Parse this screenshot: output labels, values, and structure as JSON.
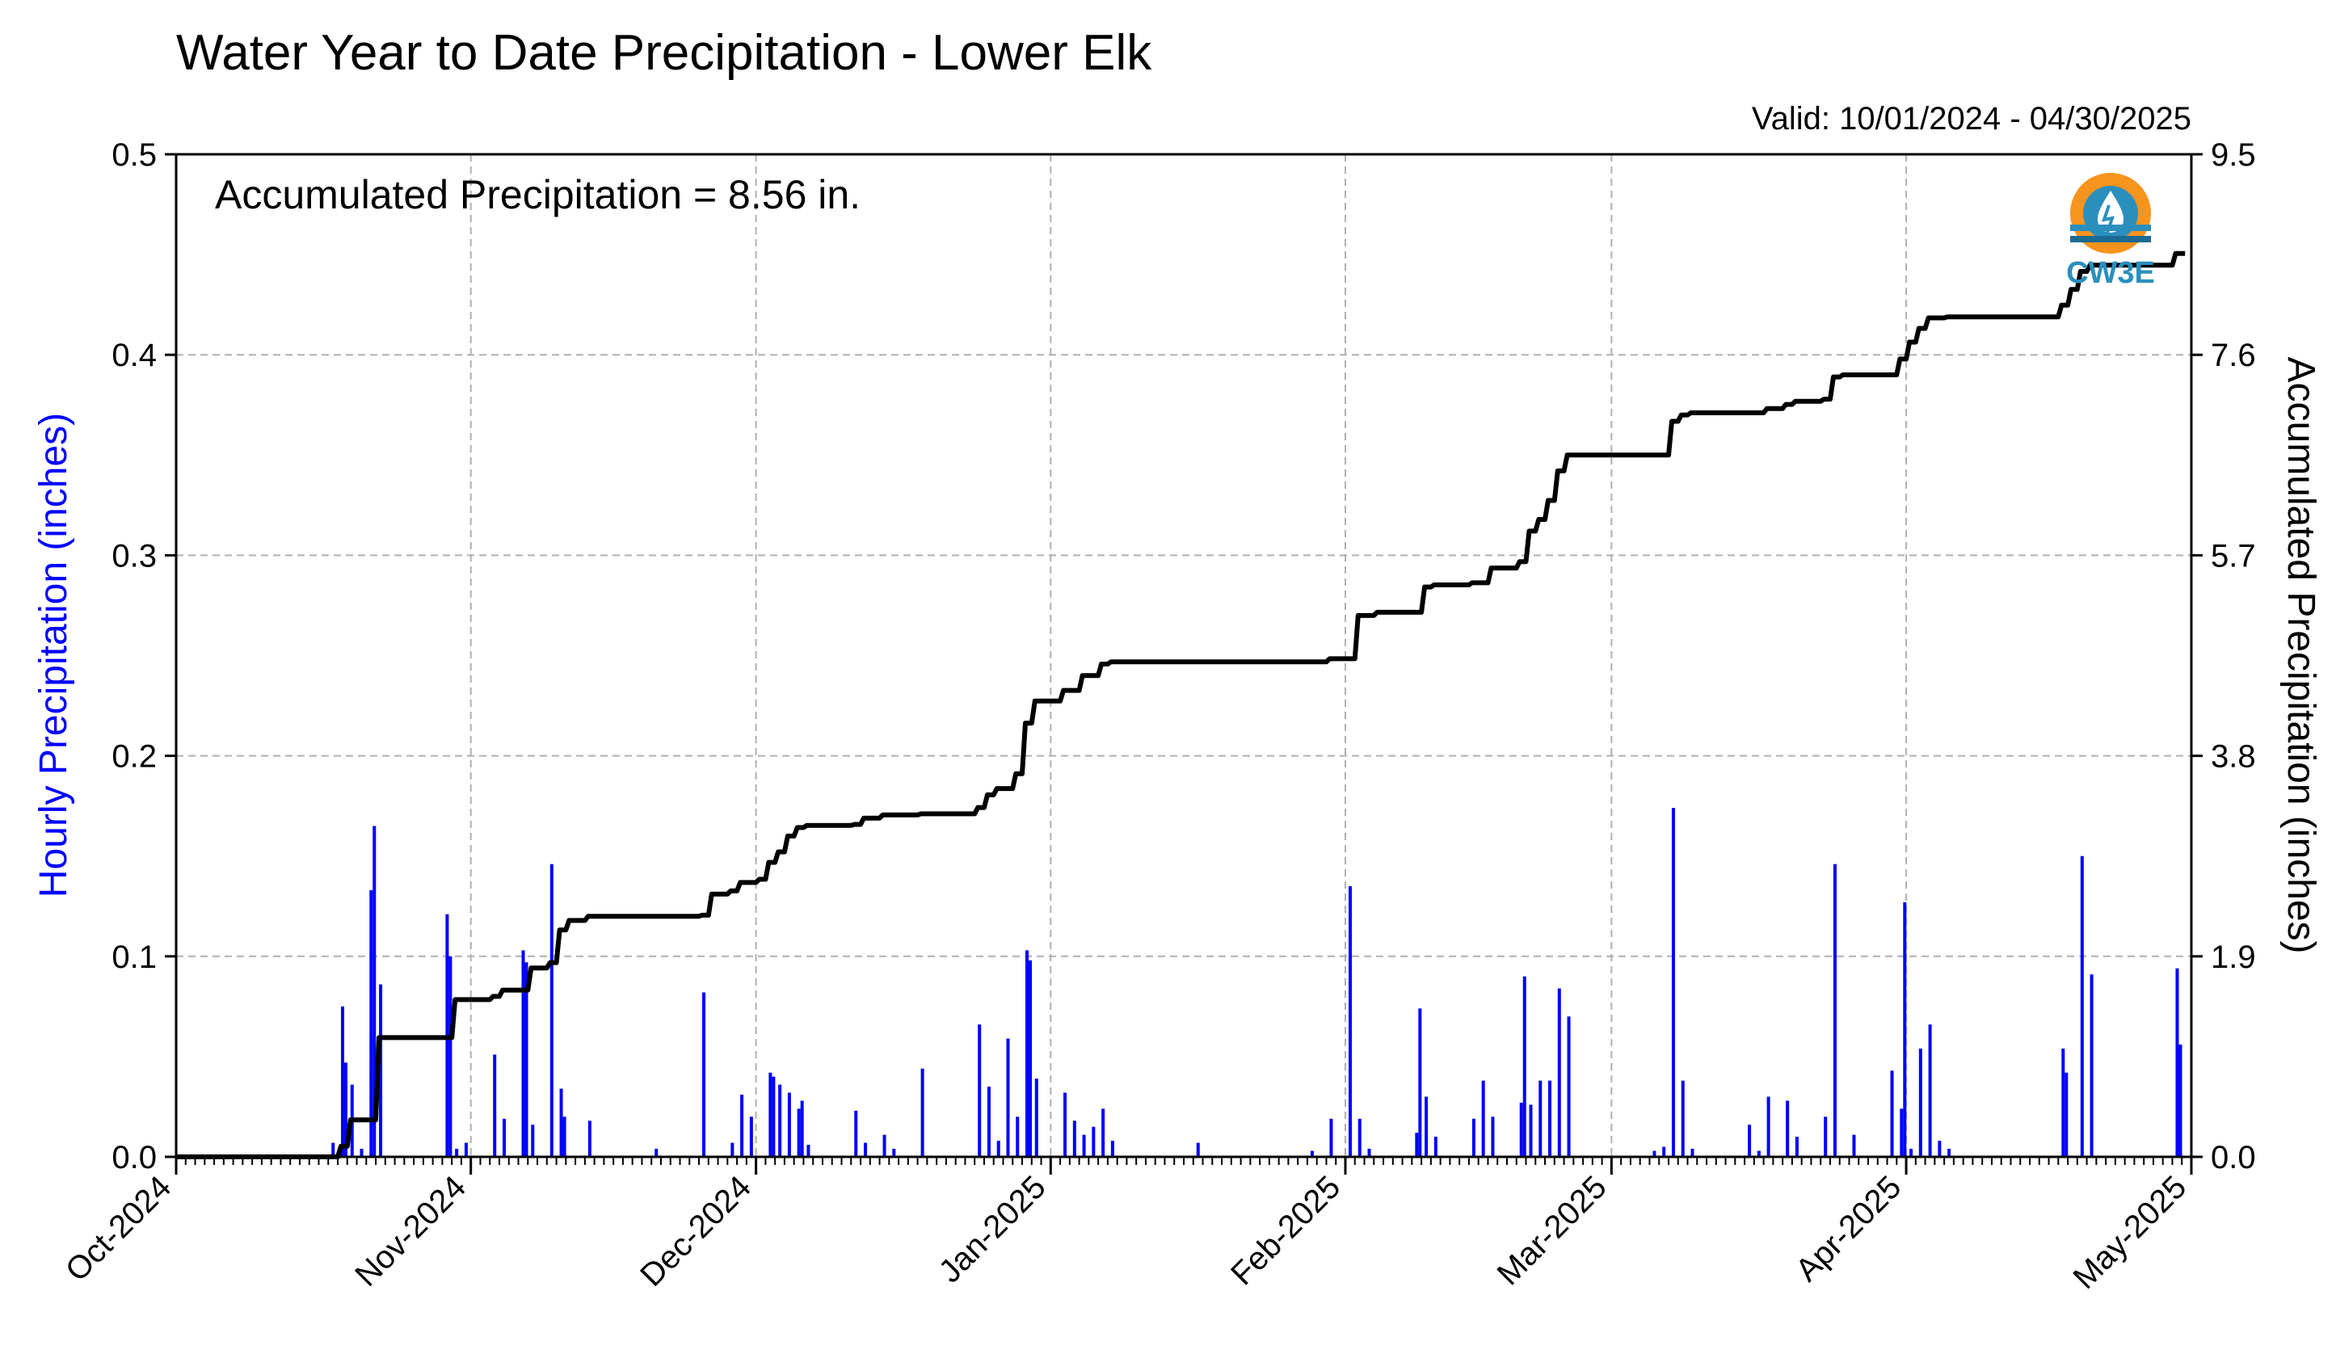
{
  "title": "Water Year to Date Precipitation - Lower Elk",
  "valid_label": "Valid: 10/01/2024 - 04/30/2025",
  "annotation": "Accumulated Precipitation = 8.56 in.",
  "logo": {
    "text": "CW3E",
    "icon": "water-drop-logo-icon",
    "colors": {
      "orange": "#F7941D",
      "blue": "#2A8FBD",
      "dark": "#1B6A93"
    }
  },
  "colors": {
    "hourly": "#0000FF",
    "accumulated": "#000000",
    "grid": "#B0B0B0"
  },
  "chart_data": {
    "type": "bar+line",
    "xlabel": "",
    "ylabel_left": "Hourly Precipitation (inches)",
    "ylabel_right": "Accumulated Precipitation (inches)",
    "x_range": [
      "2024-10-01",
      "2025-05-01"
    ],
    "ylim_left": [
      0,
      0.5
    ],
    "ylim_right": [
      0,
      9.5
    ],
    "yticks_left": [
      "0.0",
      "0.1",
      "0.2",
      "0.3",
      "0.4",
      "0.5"
    ],
    "yticks_right": [
      "0.0",
      "1.9",
      "3.8",
      "5.7",
      "7.6",
      "9.5"
    ],
    "xticks": [
      {
        "date": "2024-10-01",
        "label": "Oct-2024"
      },
      {
        "date": "2024-11-01",
        "label": "Nov-2024"
      },
      {
        "date": "2024-12-01",
        "label": "Dec-2024"
      },
      {
        "date": "2025-01-01",
        "label": "Jan-2025"
      },
      {
        "date": "2025-02-01",
        "label": "Feb-2025"
      },
      {
        "date": "2025-03-01",
        "label": "Mar-2025"
      },
      {
        "date": "2025-04-01",
        "label": "Apr-2025"
      },
      {
        "date": "2025-05-01",
        "label": "May-2025"
      }
    ],
    "grid": true,
    "hourly_series": {
      "name": "Hourly Precipitation (inches)",
      "points": [
        [
          "2024-10-17",
          0.007
        ],
        [
          "2024-10-18",
          0.075
        ],
        [
          "2024-10-18",
          0.047
        ],
        [
          "2024-10-19",
          0.036
        ],
        [
          "2024-10-20",
          0.004
        ],
        [
          "2024-10-21",
          0.133
        ],
        [
          "2024-10-21",
          0.165
        ],
        [
          "2024-10-22",
          0.086
        ],
        [
          "2024-10-29",
          0.121
        ],
        [
          "2024-10-29",
          0.1
        ],
        [
          "2024-10-30",
          0.004
        ],
        [
          "2024-10-31",
          0.007
        ],
        [
          "2024-11-03",
          0.051
        ],
        [
          "2024-11-04",
          0.019
        ],
        [
          "2024-11-06",
          0.103
        ],
        [
          "2024-11-06",
          0.097
        ],
        [
          "2024-11-07",
          0.016
        ],
        [
          "2024-11-09",
          0.146
        ],
        [
          "2024-11-10",
          0.034
        ],
        [
          "2024-11-10",
          0.02
        ],
        [
          "2024-11-13",
          0.018
        ],
        [
          "2024-11-20",
          0.004
        ],
        [
          "2024-11-25",
          0.082
        ],
        [
          "2024-11-28",
          0.007
        ],
        [
          "2024-11-29",
          0.031
        ],
        [
          "2024-11-30",
          0.02
        ],
        [
          "2024-12-02",
          0.042
        ],
        [
          "2024-12-02",
          0.04
        ],
        [
          "2024-12-03",
          0.036
        ],
        [
          "2024-12-04",
          0.032
        ],
        [
          "2024-12-05",
          0.024
        ],
        [
          "2024-12-05",
          0.028
        ],
        [
          "2024-12-06",
          0.006
        ],
        [
          "2024-12-11",
          0.023
        ],
        [
          "2024-12-12",
          0.007
        ],
        [
          "2024-12-14",
          0.011
        ],
        [
          "2024-12-15",
          0.004
        ],
        [
          "2024-12-18",
          0.044
        ],
        [
          "2024-12-24",
          0.066
        ],
        [
          "2024-12-25",
          0.035
        ],
        [
          "2024-12-26",
          0.008
        ],
        [
          "2024-12-27",
          0.059
        ],
        [
          "2024-12-28",
          0.02
        ],
        [
          "2024-12-29",
          0.103
        ],
        [
          "2024-12-29",
          0.098
        ],
        [
          "2024-12-30",
          0.039
        ],
        [
          "2025-01-02",
          0.032
        ],
        [
          "2025-01-03",
          0.018
        ],
        [
          "2025-01-04",
          0.011
        ],
        [
          "2025-01-05",
          0.015
        ],
        [
          "2025-01-06",
          0.024
        ],
        [
          "2025-01-07",
          0.008
        ],
        [
          "2025-01-16",
          0.007
        ],
        [
          "2025-01-28",
          0.003
        ],
        [
          "2025-01-30",
          0.019
        ],
        [
          "2025-02-01",
          0.135
        ],
        [
          "2025-02-02",
          0.019
        ],
        [
          "2025-02-03",
          0.004
        ],
        [
          "2025-02-08",
          0.012
        ],
        [
          "2025-02-08",
          0.074
        ],
        [
          "2025-02-09",
          0.03
        ],
        [
          "2025-02-10",
          0.01
        ],
        [
          "2025-02-14",
          0.019
        ],
        [
          "2025-02-15",
          0.038
        ],
        [
          "2025-02-16",
          0.02
        ],
        [
          "2025-02-19",
          0.027
        ],
        [
          "2025-02-19",
          0.09
        ],
        [
          "2025-02-20",
          0.026
        ],
        [
          "2025-02-21",
          0.038
        ],
        [
          "2025-02-22",
          0.038
        ],
        [
          "2025-02-23",
          0.084
        ],
        [
          "2025-02-24",
          0.07
        ],
        [
          "2025-03-05",
          0.003
        ],
        [
          "2025-03-06",
          0.005
        ],
        [
          "2025-03-07",
          0.174
        ],
        [
          "2025-03-08",
          0.038
        ],
        [
          "2025-03-09",
          0.004
        ],
        [
          "2025-03-15",
          0.016
        ],
        [
          "2025-03-16",
          0.003
        ],
        [
          "2025-03-17",
          0.03
        ],
        [
          "2025-03-19",
          0.028
        ],
        [
          "2025-03-20",
          0.01
        ],
        [
          "2025-03-23",
          0.02
        ],
        [
          "2025-03-24",
          0.146
        ],
        [
          "2025-03-26",
          0.011
        ],
        [
          "2025-03-30",
          0.043
        ],
        [
          "2025-03-31",
          0.024
        ],
        [
          "2025-03-31",
          0.127
        ],
        [
          "2025-04-01",
          0.004
        ],
        [
          "2025-04-02",
          0.054
        ],
        [
          "2025-04-03",
          0.066
        ],
        [
          "2025-04-04",
          0.008
        ],
        [
          "2025-04-05",
          0.004
        ],
        [
          "2025-04-17",
          0.054
        ],
        [
          "2025-04-17",
          0.042
        ],
        [
          "2025-04-19",
          0.15
        ],
        [
          "2025-04-20",
          0.091
        ],
        [
          "2025-04-29",
          0.094
        ],
        [
          "2025-04-29",
          0.056
        ]
      ]
    },
    "accumulated_series": {
      "name": "Accumulated Precipitation (inches)",
      "points": [
        [
          "2024-10-01",
          0.0
        ],
        [
          "2024-10-17",
          0.0
        ],
        [
          "2024-10-18",
          0.1
        ],
        [
          "2024-10-19",
          0.35
        ],
        [
          "2024-10-21",
          0.35
        ],
        [
          "2024-10-22",
          1.13
        ],
        [
          "2024-10-29",
          1.13
        ],
        [
          "2024-10-30",
          1.49
        ],
        [
          "2024-11-03",
          1.52
        ],
        [
          "2024-11-04",
          1.58
        ],
        [
          "2024-11-06",
          1.58
        ],
        [
          "2024-11-07",
          1.79
        ],
        [
          "2024-11-09",
          1.84
        ],
        [
          "2024-11-10",
          2.15
        ],
        [
          "2024-11-11",
          2.24
        ],
        [
          "2024-11-13",
          2.28
        ],
        [
          "2024-11-25",
          2.29
        ],
        [
          "2024-11-26",
          2.49
        ],
        [
          "2024-11-28",
          2.52
        ],
        [
          "2024-11-29",
          2.6
        ],
        [
          "2024-12-01",
          2.63
        ],
        [
          "2024-12-02",
          2.79
        ],
        [
          "2024-12-03",
          2.89
        ],
        [
          "2024-12-04",
          3.04
        ],
        [
          "2024-12-05",
          3.12
        ],
        [
          "2024-12-06",
          3.14
        ],
        [
          "2024-12-11",
          3.15
        ],
        [
          "2024-12-12",
          3.21
        ],
        [
          "2024-12-14",
          3.24
        ],
        [
          "2024-12-18",
          3.25
        ],
        [
          "2024-12-24",
          3.31
        ],
        [
          "2024-12-25",
          3.43
        ],
        [
          "2024-12-26",
          3.49
        ],
        [
          "2024-12-28",
          3.63
        ],
        [
          "2024-12-29",
          4.11
        ],
        [
          "2024-12-30",
          4.32
        ],
        [
          "2025-01-02",
          4.42
        ],
        [
          "2025-01-04",
          4.56
        ],
        [
          "2025-01-06",
          4.67
        ],
        [
          "2025-01-07",
          4.69
        ],
        [
          "2025-01-28",
          4.69
        ],
        [
          "2025-01-30",
          4.72
        ],
        [
          "2025-02-01",
          4.72
        ],
        [
          "2025-02-02",
          5.13
        ],
        [
          "2025-02-04",
          5.16
        ],
        [
          "2025-02-08",
          5.16
        ],
        [
          "2025-02-09",
          5.4
        ],
        [
          "2025-02-10",
          5.42
        ],
        [
          "2025-02-14",
          5.44
        ],
        [
          "2025-02-16",
          5.58
        ],
        [
          "2025-02-19",
          5.64
        ],
        [
          "2025-02-20",
          5.93
        ],
        [
          "2025-02-21",
          6.04
        ],
        [
          "2025-02-22",
          6.22
        ],
        [
          "2025-02-23",
          6.5
        ],
        [
          "2025-02-24",
          6.65
        ],
        [
          "2025-03-06",
          6.65
        ],
        [
          "2025-03-07",
          6.97
        ],
        [
          "2025-03-08",
          7.03
        ],
        [
          "2025-03-09",
          7.05
        ],
        [
          "2025-03-15",
          7.05
        ],
        [
          "2025-03-17",
          7.09
        ],
        [
          "2025-03-19",
          7.13
        ],
        [
          "2025-03-20",
          7.16
        ],
        [
          "2025-03-23",
          7.18
        ],
        [
          "2025-03-24",
          7.39
        ],
        [
          "2025-03-25",
          7.41
        ],
        [
          "2025-03-30",
          7.41
        ],
        [
          "2025-03-31",
          7.56
        ],
        [
          "2025-04-01",
          7.72
        ],
        [
          "2025-04-02",
          7.85
        ],
        [
          "2025-04-03",
          7.95
        ],
        [
          "2025-04-05",
          7.96
        ],
        [
          "2025-04-16",
          7.96
        ],
        [
          "2025-04-17",
          8.07
        ],
        [
          "2025-04-18",
          8.22
        ],
        [
          "2025-04-19",
          8.39
        ],
        [
          "2025-04-20",
          8.45
        ],
        [
          "2025-04-28",
          8.45
        ],
        [
          "2025-04-29",
          8.56
        ],
        [
          "2025-04-30",
          8.56
        ]
      ]
    }
  }
}
